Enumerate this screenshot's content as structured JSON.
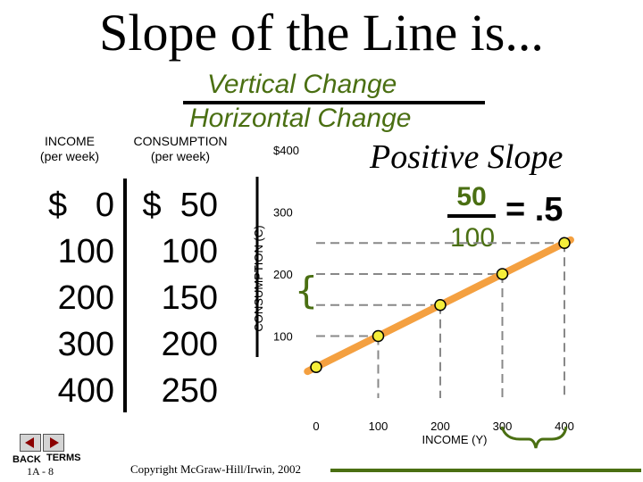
{
  "slide": {
    "title": "Slope of the Line is...",
    "fraction_top": "Vertical Change",
    "fraction_bottom": "Horizontal Change",
    "page": "1A - 8",
    "copyright": "Copyright McGraw-Hill/Irwin, 2002"
  },
  "table": {
    "income_header": "INCOME",
    "income_subheader": "(per week)",
    "consumption_header": "CONSUMPTION",
    "consumption_subheader": "(per week)",
    "income": [
      "$   0",
      "100",
      "200",
      "300",
      "400"
    ],
    "consumption": [
      "$  50",
      "100",
      "150",
      "200",
      "250"
    ]
  },
  "slope": {
    "heading": "Positive Slope",
    "numerator": "50",
    "denominator": "100",
    "result": "= .5"
  },
  "nav": {
    "back_label": "BACK",
    "terms_label": "TERMS"
  },
  "colors": {
    "line": "#f4a040",
    "point_fill": "#f5ee3a",
    "accent": "#4a6f12",
    "dashed": "#888888"
  },
  "chart_data": {
    "type": "line",
    "xlabel": "INCOME (Y)",
    "ylabel": "CONSUMPTION (C)",
    "x_ticks": [
      "0",
      "100",
      "200",
      "300",
      "400"
    ],
    "y_ticks": [
      "100",
      "200",
      "300",
      "$400"
    ],
    "xlim": [
      0,
      400
    ],
    "ylim": [
      0,
      400
    ],
    "series": [
      {
        "x": [
          0,
          100,
          200,
          300,
          400
        ],
        "y": [
          50,
          100,
          150,
          200,
          250
        ]
      }
    ]
  }
}
